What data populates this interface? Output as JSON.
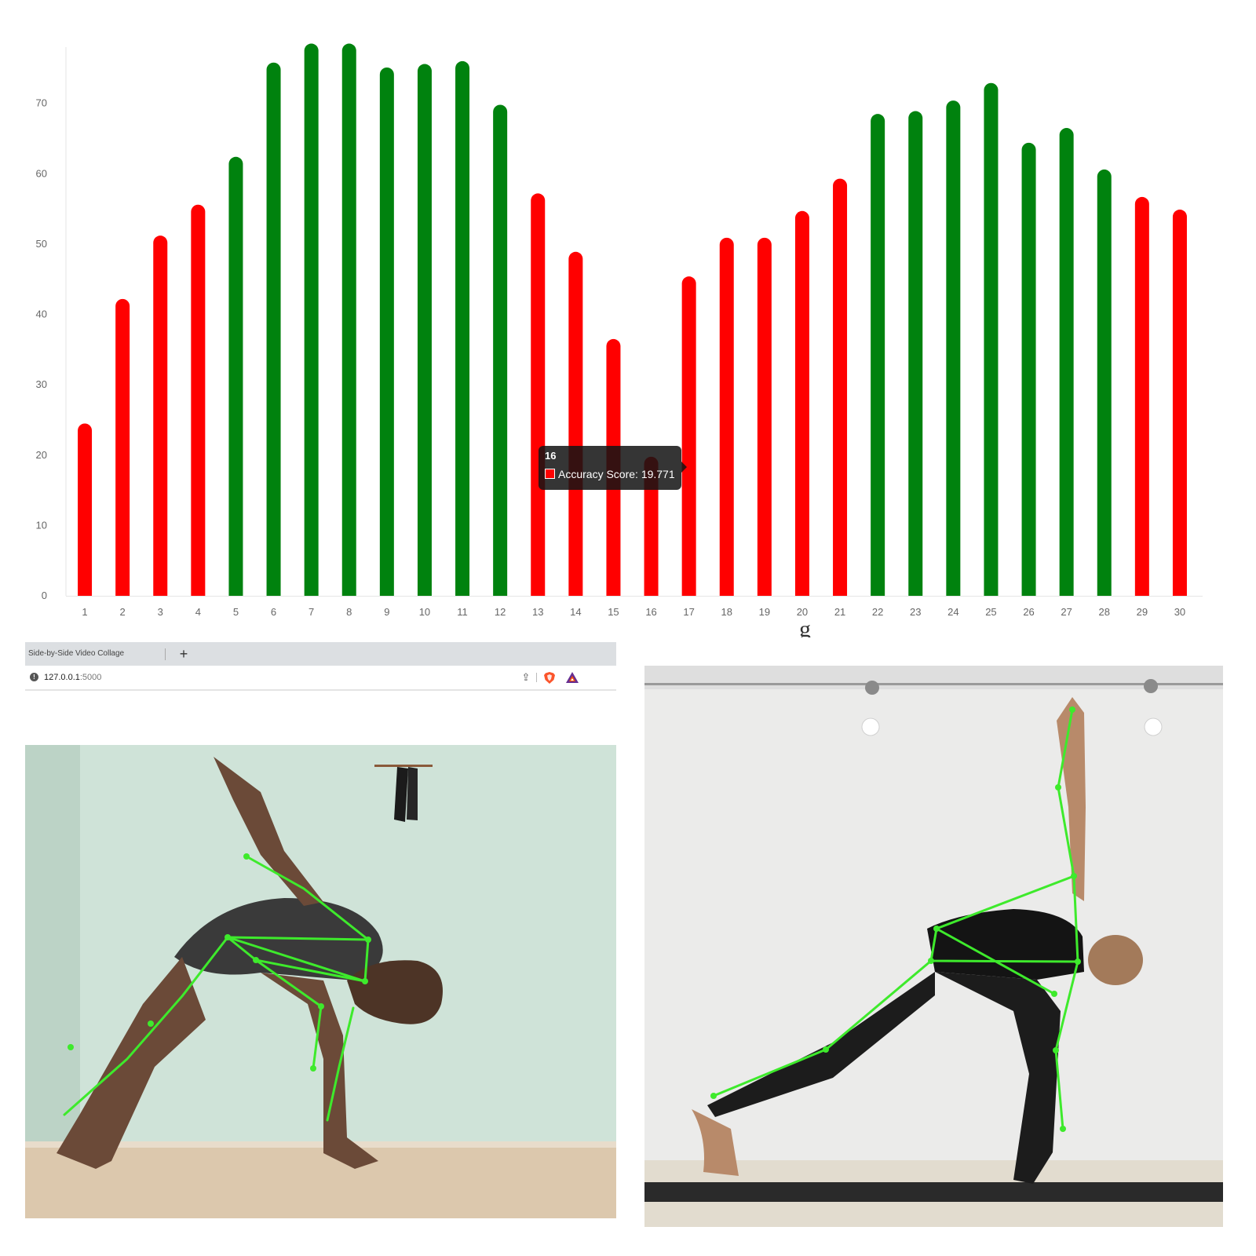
{
  "chart_data": {
    "type": "bar",
    "categories": [
      "1",
      "2",
      "3",
      "4",
      "5",
      "6",
      "7",
      "8",
      "9",
      "10",
      "11",
      "12",
      "13",
      "14",
      "15",
      "16",
      "17",
      "18",
      "19",
      "20",
      "21",
      "22",
      "23",
      "24",
      "25",
      "26",
      "27",
      "28",
      "29",
      "30"
    ],
    "series": [
      {
        "values": [
          24.5,
          42.2,
          51.2,
          55.6,
          62.4,
          75.8,
          78.5,
          78.5,
          75.1,
          75.6,
          76.0,
          69.8,
          57.2,
          48.9,
          36.5,
          19.771,
          45.4,
          50.9,
          50.9,
          54.7,
          59.3,
          68.5,
          68.9,
          70.4,
          72.9,
          64.4,
          66.5,
          60.6,
          56.7,
          54.9
        ]
      }
    ],
    "colors_by_bar": [
      "red",
      "red",
      "red",
      "red",
      "green",
      "green",
      "green",
      "green",
      "green",
      "green",
      "green",
      "green",
      "red",
      "red",
      "red",
      "red",
      "red",
      "red",
      "red",
      "red",
      "red",
      "green",
      "green",
      "green",
      "green",
      "green",
      "green",
      "green",
      "red",
      "red"
    ],
    "palette": {
      "red": "#ff0000",
      "green": "#00820e"
    },
    "yticks": [
      0,
      10,
      20,
      30,
      40,
      50,
      60,
      70
    ],
    "ylim": [
      0,
      78
    ],
    "grid": false,
    "title": "",
    "xlabel": "",
    "ylabel": ""
  },
  "tooltip": {
    "title": "16",
    "label": "Accuracy Score: 19.771",
    "swatch_color": "#ff0000"
  },
  "stray_glyph": "g",
  "browser": {
    "tab_title": "Side-by-Side Video Collage",
    "new_tab_symbol": "+",
    "url_host": "127.0.0.1",
    "url_port": ":5000",
    "info_symbol": "!",
    "share_symbol": "⇪"
  },
  "icons": {
    "info": "info-icon",
    "share": "share-icon",
    "brave": "brave-lion-icon",
    "rewards": "bat-triangle-icon",
    "new_tab": "plus-icon"
  }
}
